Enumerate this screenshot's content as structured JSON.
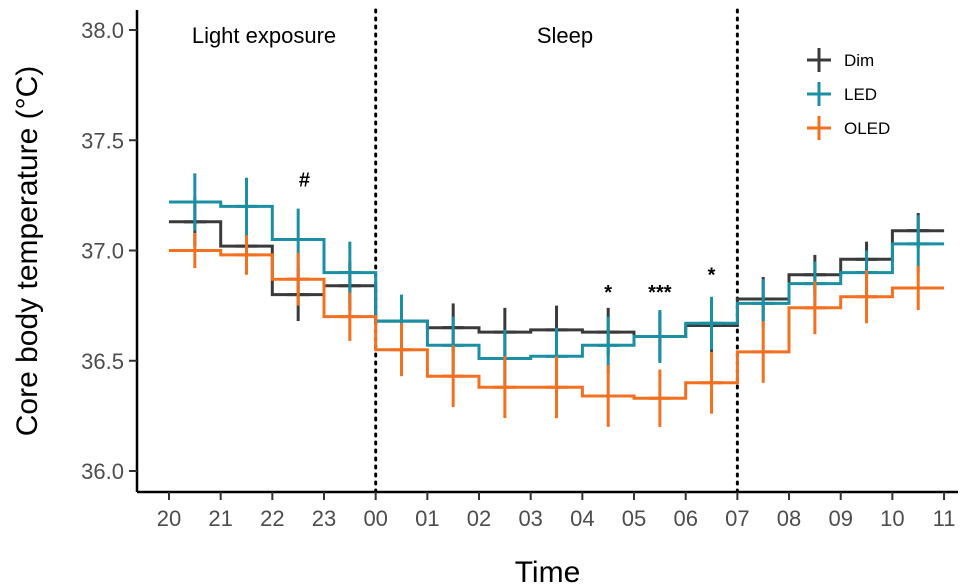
{
  "chart_data": {
    "type": "line",
    "xlabel": "Time",
    "ylabel": "Core body temperature (°C)",
    "x_ticks": [
      "20",
      "21",
      "22",
      "23",
      "00",
      "01",
      "02",
      "03",
      "04",
      "05",
      "06",
      "07",
      "08",
      "09",
      "10",
      "11"
    ],
    "y_ticks": [
      36.0,
      36.5,
      37.0,
      37.5,
      38.0
    ],
    "y_tick_labels": [
      "36.0",
      "36.5",
      "37.0",
      "37.5",
      "38.0"
    ],
    "xlim": [
      0,
      15
    ],
    "ylim": [
      35.96,
      38.0
    ],
    "grid": false,
    "legend_position": "top-right",
    "regions": [
      {
        "label": "Light exposure",
        "x_start": 0,
        "x_end": 4
      },
      {
        "label": "Sleep",
        "x_start": 4,
        "x_end": 11
      }
    ],
    "boundaries": [
      4,
      11
    ],
    "series": [
      {
        "name": "Dim",
        "color": "#3a3a3a",
        "x": [
          0.5,
          1.5,
          2.5,
          3.5,
          4.5,
          5.5,
          6.5,
          7.5,
          8.5,
          9.5,
          10.5,
          11.5,
          12.5,
          13.5,
          14.5
        ],
        "values": [
          37.13,
          37.02,
          36.8,
          36.84,
          36.68,
          36.65,
          36.63,
          36.64,
          36.63,
          36.61,
          36.66,
          36.78,
          36.89,
          36.96,
          37.09
        ],
        "error": [
          0.11,
          0.1,
          0.12,
          0.11,
          0.1,
          0.11,
          0.11,
          0.11,
          0.11,
          0.11,
          0.12,
          0.1,
          0.09,
          0.08,
          0.08
        ]
      },
      {
        "name": "LED",
        "color": "#1b8fa3",
        "x": [
          0.5,
          1.5,
          2.5,
          3.5,
          4.5,
          5.5,
          6.5,
          7.5,
          8.5,
          9.5,
          10.5,
          11.5,
          12.5,
          13.5,
          14.5
        ],
        "values": [
          37.22,
          37.2,
          37.05,
          36.9,
          36.68,
          36.57,
          36.51,
          36.52,
          36.57,
          36.61,
          36.67,
          36.76,
          36.85,
          36.9,
          37.03
        ],
        "error": [
          0.13,
          0.13,
          0.14,
          0.14,
          0.12,
          0.13,
          0.13,
          0.13,
          0.13,
          0.12,
          0.12,
          0.11,
          0.1,
          0.1,
          0.13
        ]
      },
      {
        "name": "OLED",
        "color": "#f37021",
        "x": [
          0.5,
          1.5,
          2.5,
          3.5,
          4.5,
          5.5,
          6.5,
          7.5,
          8.5,
          9.5,
          10.5,
          11.5,
          12.5,
          13.5,
          14.5
        ],
        "values": [
          37.0,
          36.98,
          36.87,
          36.7,
          36.55,
          36.43,
          36.38,
          36.38,
          36.34,
          36.33,
          36.4,
          36.54,
          36.74,
          36.79,
          36.83
        ],
        "error": [
          0.08,
          0.09,
          0.12,
          0.11,
          0.12,
          0.14,
          0.14,
          0.14,
          0.14,
          0.13,
          0.14,
          0.14,
          0.12,
          0.12,
          0.1
        ]
      }
    ],
    "annotations": [
      {
        "text": "#",
        "x": 2.62,
        "y": 37.29
      },
      {
        "text": "*",
        "x": 8.5,
        "y": 36.78
      },
      {
        "text": "***",
        "x": 9.5,
        "y": 36.78
      },
      {
        "text": "*",
        "x": 10.5,
        "y": 36.86
      }
    ]
  }
}
